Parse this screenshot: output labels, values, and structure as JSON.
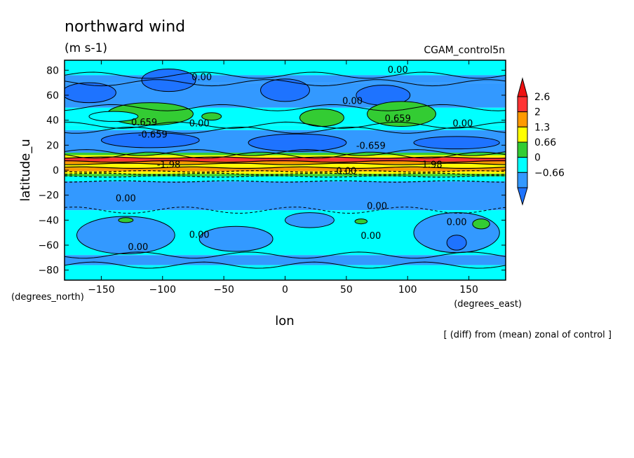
{
  "chart_data": {
    "type": "heatmap",
    "title": "northward wind",
    "units": "(m s-1)",
    "dataset": "CGAM_control5n",
    "xlabel": "lon",
    "ylabel": "latitude_u",
    "x_units": "(degrees_east)",
    "y_units": "(degrees_north)",
    "footnote": "[ (diff) from (mean) zonal of control ]",
    "xlim": [
      -180,
      180
    ],
    "ylim": [
      -88,
      88
    ],
    "x_ticks": [
      -150,
      -100,
      -50,
      0,
      50,
      100,
      150
    ],
    "y_ticks": [
      80,
      60,
      40,
      20,
      0,
      -20,
      -40,
      -60,
      -80
    ],
    "x_tick_labels": [
      "−150",
      "−100",
      "−50",
      "0",
      "50",
      "100",
      "150"
    ],
    "y_tick_labels": [
      "80",
      "60",
      "40",
      "20",
      "0",
      "−20",
      "−40",
      "−60",
      "−80"
    ],
    "colorbar": {
      "levels": [
        -0.66,
        0,
        0.66,
        1.3,
        2,
        2.6
      ],
      "labels": [
        "−0.66",
        "0",
        "0.66",
        "1.3",
        "2",
        "2.6"
      ],
      "colors": [
        "#3399ff",
        "#00ffff",
        "#33cc33",
        "#ffff00",
        "#ff9900",
        "#ff3333"
      ],
      "low_color": "#1e73ff",
      "high_color": "#ee1111"
    },
    "bands": [
      {
        "from": 88,
        "to": 76,
        "color": "#00ffff"
      },
      {
        "from": 76,
        "to": 70,
        "color": "#3399ff"
      },
      {
        "from": 70,
        "to": 50,
        "color": "#3399ff"
      },
      {
        "from": 50,
        "to": 36,
        "color": "#00ffff"
      },
      {
        "from": 36,
        "to": 32,
        "color": "#00ffff"
      },
      {
        "from": 32,
        "to": 14,
        "color": "#3399ff"
      },
      {
        "from": 14,
        "to": 12,
        "color": "#33cc33"
      },
      {
        "from": 12,
        "to": 10,
        "color": "#ffff00"
      },
      {
        "from": 10,
        "to": 7,
        "color": "#ff3333"
      },
      {
        "from": 7,
        "to": 5,
        "color": "#ff9900"
      },
      {
        "from": 5,
        "to": 2,
        "color": "#ffff00"
      },
      {
        "from": 2,
        "to": -1,
        "color": "#ff9900"
      },
      {
        "from": -1,
        "to": -3,
        "color": "#ffff00"
      },
      {
        "from": -3,
        "to": -5,
        "color": "#33cc33"
      },
      {
        "from": -5,
        "to": -9,
        "color": "#00ffff"
      },
      {
        "from": -9,
        "to": -32,
        "color": "#3399ff"
      },
      {
        "from": -32,
        "to": -68,
        "color": "#00ffff"
      },
      {
        "from": -68,
        "to": -76,
        "color": "#3399ff"
      },
      {
        "from": -76,
        "to": -88,
        "color": "#00ffff"
      }
    ],
    "patches": [
      {
        "lon": -160,
        "lat": 62,
        "rx": 22,
        "ry": 8,
        "color": "#1e73ff"
      },
      {
        "lon": -95,
        "lat": 72,
        "rx": 22,
        "ry": 9,
        "color": "#1e73ff"
      },
      {
        "lon": 0,
        "lat": 64,
        "rx": 20,
        "ry": 9,
        "color": "#1e73ff"
      },
      {
        "lon": 80,
        "lat": 60,
        "rx": 22,
        "ry": 8,
        "color": "#1e73ff"
      },
      {
        "lon": -110,
        "lat": 45,
        "rx": 35,
        "ry": 9,
        "color": "#33cc33"
      },
      {
        "lon": -60,
        "lat": 43,
        "rx": 8,
        "ry": 3,
        "color": "#33cc33"
      },
      {
        "lon": 30,
        "lat": 42,
        "rx": 18,
        "ry": 7,
        "color": "#33cc33"
      },
      {
        "lon": 95,
        "lat": 45,
        "rx": 28,
        "ry": 10,
        "color": "#33cc33"
      },
      {
        "lon": -140,
        "lat": 43,
        "rx": 20,
        "ry": 4,
        "color": "#00ffff"
      },
      {
        "lon": -110,
        "lat": 24,
        "rx": 40,
        "ry": 6,
        "color": "#1e73ff"
      },
      {
        "lon": 10,
        "lat": 22,
        "rx": 40,
        "ry": 7,
        "color": "#1e73ff"
      },
      {
        "lon": 140,
        "lat": 22,
        "rx": 35,
        "ry": 5,
        "color": "#1e73ff"
      },
      {
        "lon": -130,
        "lat": -52,
        "rx": 40,
        "ry": 15,
        "color": "#3399ff"
      },
      {
        "lon": -40,
        "lat": -55,
        "rx": 30,
        "ry": 10,
        "color": "#3399ff"
      },
      {
        "lon": 20,
        "lat": -40,
        "rx": 20,
        "ry": 6,
        "color": "#3399ff"
      },
      {
        "lon": 140,
        "lat": -50,
        "rx": 35,
        "ry": 16,
        "color": "#3399ff"
      },
      {
        "lon": -130,
        "lat": -40,
        "rx": 6,
        "ry": 2,
        "color": "#33cc33"
      },
      {
        "lon": 62,
        "lat": -41,
        "rx": 5,
        "ry": 2,
        "color": "#33cc33"
      },
      {
        "lon": 160,
        "lat": -43,
        "rx": 7,
        "ry": 4,
        "color": "#33cc33"
      },
      {
        "lon": 140,
        "lat": -58,
        "rx": 8,
        "ry": 6,
        "color": "#1e73ff"
      }
    ],
    "contour_labels": [
      {
        "text": "0.00",
        "lon": -68,
        "lat": 72
      },
      {
        "text": "0.00",
        "lon": 92,
        "lat": 78
      },
      {
        "text": "0.00",
        "lon": 55,
        "lat": 53
      },
      {
        "text": "0.659",
        "lon": -115,
        "lat": 36
      },
      {
        "text": "0.00",
        "lon": -70,
        "lat": 35
      },
      {
        "text": "-0.659",
        "lon": -108,
        "lat": 26
      },
      {
        "text": "0.659",
        "lon": 92,
        "lat": 39
      },
      {
        "text": "0.00",
        "lon": 145,
        "lat": 35
      },
      {
        "text": "-0.659",
        "lon": 70,
        "lat": 17
      },
      {
        "text": "0.00",
        "lon": -130,
        "lat": -25
      },
      {
        "text": "0.00",
        "lon": 50,
        "lat": -3
      },
      {
        "text": "0.00",
        "lon": 75,
        "lat": -31
      },
      {
        "text": "0.00",
        "lon": -120,
        "lat": -64
      },
      {
        "text": "0.00",
        "lon": -70,
        "lat": -54
      },
      {
        "text": "0.00",
        "lon": 70,
        "lat": -55
      },
      {
        "text": "0.00",
        "lon": 140,
        "lat": -44
      },
      {
        "text": "-1.98",
        "lon": -95,
        "lat": 2
      },
      {
        "text": "1.98",
        "lon": 120,
        "lat": 2
      }
    ]
  }
}
